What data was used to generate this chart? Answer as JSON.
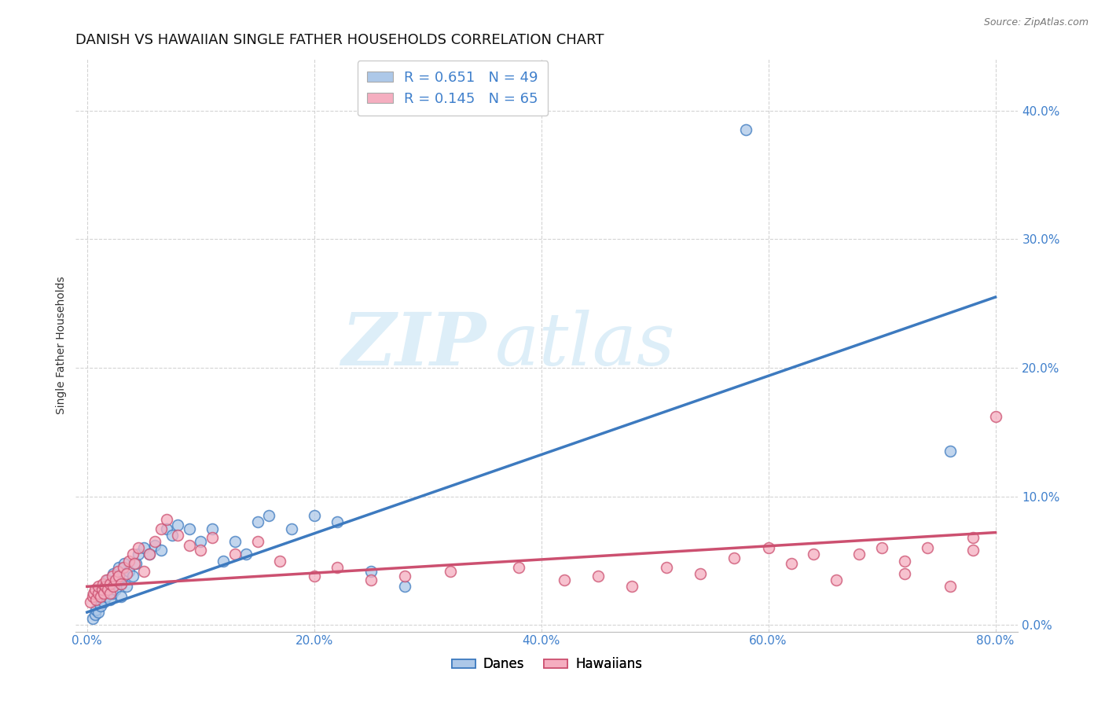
{
  "title": "DANISH VS HAWAIIAN SINGLE FATHER HOUSEHOLDS CORRELATION CHART",
  "source": "Source: ZipAtlas.com",
  "ylabel": "Single Father Households",
  "xlabel_ticks": [
    "0.0%",
    "20.0%",
    "40.0%",
    "60.0%",
    "80.0%"
  ],
  "xlabel_vals": [
    0.0,
    0.2,
    0.4,
    0.6,
    0.8
  ],
  "ylabel_ticks": [
    "0.0%",
    "10.0%",
    "20.0%",
    "30.0%",
    "40.0%"
  ],
  "ylabel_vals": [
    0.0,
    0.1,
    0.2,
    0.3,
    0.4
  ],
  "xlim": [
    -0.01,
    0.82
  ],
  "ylim": [
    -0.005,
    0.44
  ],
  "danes_R": 0.651,
  "danes_N": 49,
  "hawaiians_R": 0.145,
  "hawaiians_N": 65,
  "danes_color": "#adc8e8",
  "hawaiians_color": "#f5aec0",
  "danes_line_color": "#3d7abf",
  "hawaiians_line_color": "#cc5070",
  "danes_scatter_x": [
    0.005,
    0.007,
    0.008,
    0.01,
    0.01,
    0.012,
    0.013,
    0.015,
    0.015,
    0.017,
    0.018,
    0.02,
    0.02,
    0.022,
    0.023,
    0.025,
    0.027,
    0.028,
    0.03,
    0.03,
    0.032,
    0.033,
    0.035,
    0.037,
    0.04,
    0.043,
    0.045,
    0.05,
    0.055,
    0.06,
    0.065,
    0.07,
    0.075,
    0.08,
    0.09,
    0.1,
    0.11,
    0.12,
    0.13,
    0.14,
    0.15,
    0.16,
    0.18,
    0.2,
    0.22,
    0.25,
    0.28,
    0.58,
    0.76
  ],
  "danes_scatter_y": [
    0.005,
    0.008,
    0.012,
    0.01,
    0.02,
    0.015,
    0.025,
    0.018,
    0.03,
    0.022,
    0.035,
    0.02,
    0.03,
    0.025,
    0.04,
    0.028,
    0.035,
    0.045,
    0.022,
    0.032,
    0.038,
    0.048,
    0.03,
    0.042,
    0.038,
    0.048,
    0.055,
    0.06,
    0.055,
    0.062,
    0.058,
    0.075,
    0.07,
    0.078,
    0.075,
    0.065,
    0.075,
    0.05,
    0.065,
    0.055,
    0.08,
    0.085,
    0.075,
    0.085,
    0.08,
    0.042,
    0.03,
    0.385,
    0.135
  ],
  "hawaiians_scatter_x": [
    0.003,
    0.005,
    0.006,
    0.007,
    0.008,
    0.01,
    0.01,
    0.012,
    0.013,
    0.014,
    0.015,
    0.016,
    0.017,
    0.018,
    0.02,
    0.02,
    0.022,
    0.023,
    0.025,
    0.027,
    0.028,
    0.03,
    0.032,
    0.035,
    0.037,
    0.04,
    0.042,
    0.045,
    0.05,
    0.055,
    0.06,
    0.065,
    0.07,
    0.08,
    0.09,
    0.1,
    0.11,
    0.13,
    0.15,
    0.17,
    0.2,
    0.22,
    0.25,
    0.28,
    0.32,
    0.38,
    0.42,
    0.45,
    0.48,
    0.51,
    0.54,
    0.57,
    0.6,
    0.62,
    0.64,
    0.66,
    0.68,
    0.7,
    0.72,
    0.74,
    0.76,
    0.78,
    0.8,
    0.72,
    0.78
  ],
  "hawaiians_scatter_y": [
    0.018,
    0.022,
    0.025,
    0.028,
    0.02,
    0.025,
    0.03,
    0.022,
    0.028,
    0.032,
    0.025,
    0.03,
    0.035,
    0.028,
    0.025,
    0.032,
    0.038,
    0.03,
    0.035,
    0.042,
    0.038,
    0.032,
    0.045,
    0.04,
    0.05,
    0.055,
    0.048,
    0.06,
    0.042,
    0.055,
    0.065,
    0.075,
    0.082,
    0.07,
    0.062,
    0.058,
    0.068,
    0.055,
    0.065,
    0.05,
    0.038,
    0.045,
    0.035,
    0.038,
    0.042,
    0.045,
    0.035,
    0.038,
    0.03,
    0.045,
    0.04,
    0.052,
    0.06,
    0.048,
    0.055,
    0.035,
    0.055,
    0.06,
    0.05,
    0.06,
    0.03,
    0.058,
    0.162,
    0.04,
    0.068
  ],
  "danes_line_x": [
    0.0,
    0.8
  ],
  "danes_line_y": [
    0.01,
    0.255
  ],
  "hawaiians_line_x": [
    0.0,
    0.8
  ],
  "hawaiians_line_y": [
    0.03,
    0.072
  ],
  "background_color": "#ffffff",
  "grid_color": "#d0d0d0",
  "title_fontsize": 13,
  "axis_label_fontsize": 10,
  "tick_fontsize": 11,
  "legend_fontsize": 13
}
